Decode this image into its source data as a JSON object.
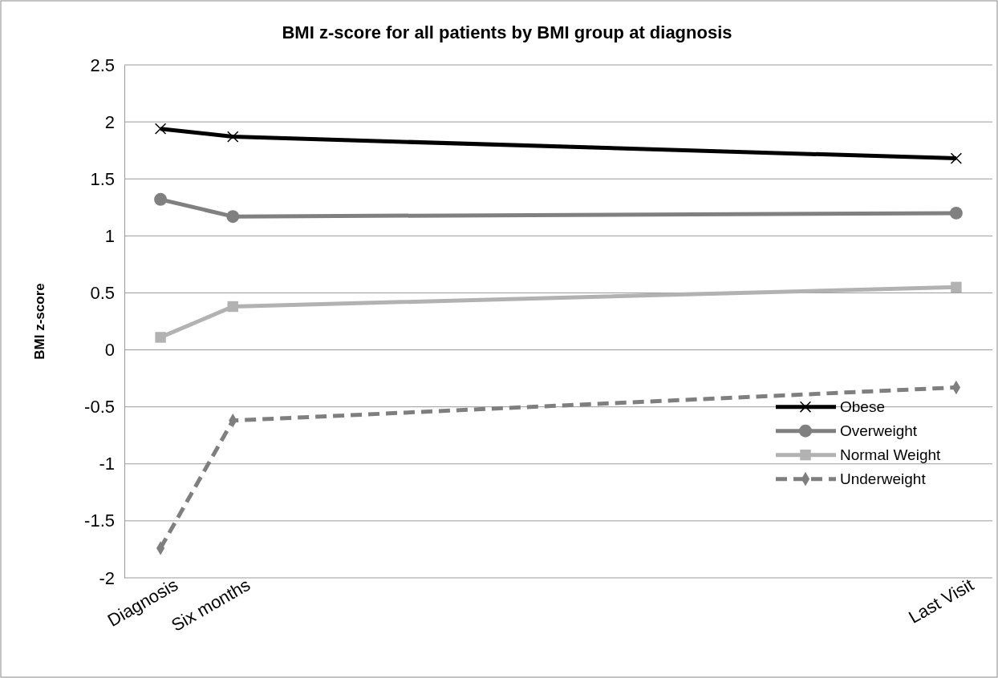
{
  "chart_data": {
    "type": "line",
    "title": "BMI z-score for all patients by BMI group at diagnosis",
    "ylabel": "BMI z-score",
    "categories": [
      "Diagnosis",
      "Six months",
      null,
      null,
      null,
      null,
      null,
      null,
      null,
      null,
      null,
      "Last Visit"
    ],
    "ylim": [
      -2,
      2.5
    ],
    "yticks": [
      -2,
      -1.5,
      -1,
      -0.5,
      0,
      0.5,
      1,
      1.5,
      2,
      2.5
    ],
    "grid": "y",
    "legend": "right",
    "series": [
      {
        "name": "Obese",
        "color": "#000000",
        "values": [
          1.94,
          1.87,
          null,
          null,
          null,
          null,
          null,
          null,
          null,
          null,
          null,
          1.68
        ],
        "marker": "cross",
        "line_style": "solid"
      },
      {
        "name": "Overweight",
        "color": "#808080",
        "values": [
          1.32,
          1.17,
          null,
          null,
          null,
          null,
          null,
          null,
          null,
          null,
          null,
          1.2
        ],
        "marker": "circle",
        "line_style": "solid"
      },
      {
        "name": "Normal Weight",
        "color": "#b2b2b2",
        "values": [
          0.11,
          0.38,
          null,
          null,
          null,
          null,
          null,
          null,
          null,
          null,
          null,
          0.55
        ],
        "marker": "square",
        "line_style": "solid"
      },
      {
        "name": "Underweight",
        "color": "#7f7f7f",
        "values": [
          -1.74,
          -0.62,
          null,
          null,
          null,
          null,
          null,
          null,
          null,
          null,
          null,
          -0.33
        ],
        "marker": "diamond",
        "line_style": "dashed"
      }
    ]
  }
}
